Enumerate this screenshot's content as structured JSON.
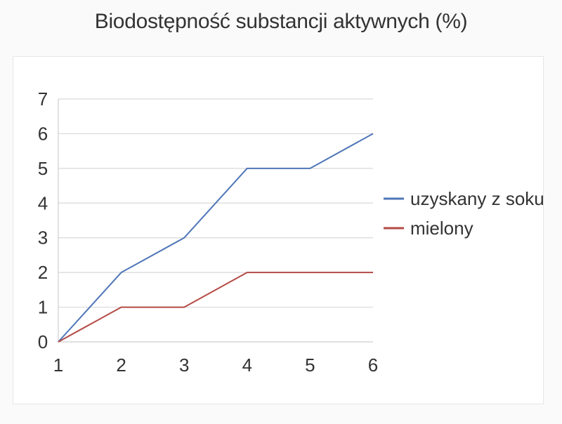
{
  "chart_data": {
    "type": "line",
    "title": "Biodostępność substancji aktywnych (%)",
    "x": [
      1,
      2,
      3,
      4,
      5,
      6
    ],
    "series": [
      {
        "name": "uzyskany z soku",
        "color": "#4f76b8",
        "values": [
          0,
          2,
          3,
          5,
          5,
          6
        ]
      },
      {
        "name": "mielony",
        "color": "#b44a45",
        "values": [
          0,
          1,
          1,
          2,
          2,
          2
        ]
      }
    ],
    "xlim": [
      1,
      6
    ],
    "ylim": [
      0,
      7
    ],
    "yticks": [
      0,
      1,
      2,
      3,
      4,
      5,
      6,
      7
    ],
    "xticks": [
      1,
      2,
      3,
      4,
      5,
      6
    ],
    "grid": true,
    "legend_position": "right"
  }
}
